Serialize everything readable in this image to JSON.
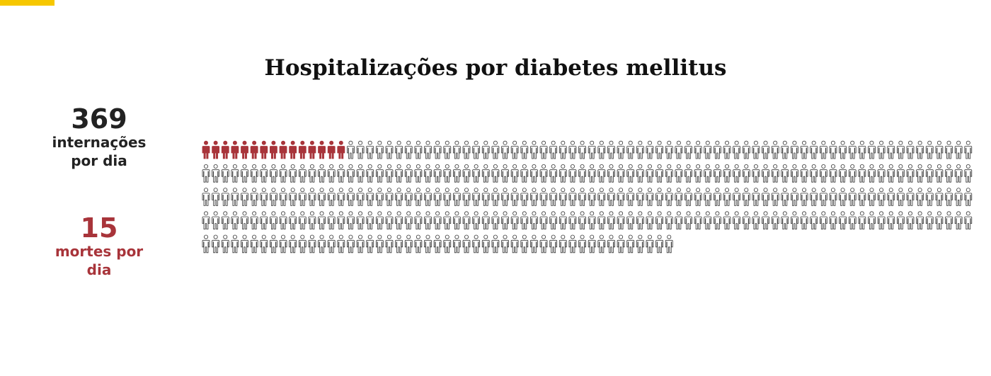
{
  "chart_data": {
    "type": "pictogram",
    "title": "Hospitalizações por diabetes mellitus",
    "series": [
      {
        "name": "internações por dia",
        "value": 369,
        "color": "#ffffff"
      },
      {
        "name": "mortes por dia",
        "value": 15,
        "color": "#a8343a"
      }
    ]
  }
}
